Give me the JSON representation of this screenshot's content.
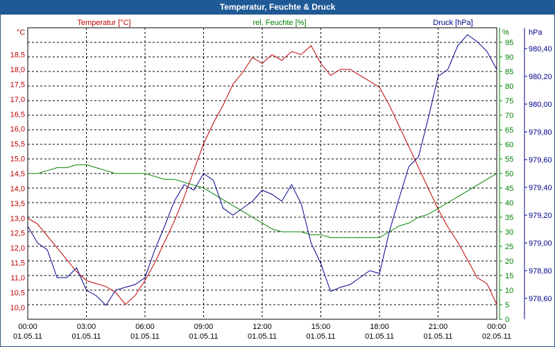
{
  "chart_data": {
    "type": "line",
    "title": "Temperatur, Feuchte & Druck",
    "grid": true,
    "x_ticks": [
      {
        "time": "00:00",
        "date": "01.05.11"
      },
      {
        "time": "03:00",
        "date": "01.05.11"
      },
      {
        "time": "06:00",
        "date": "01.05.11"
      },
      {
        "time": "09:00",
        "date": "01.05.11"
      },
      {
        "time": "12:00",
        "date": "01.05.11"
      },
      {
        "time": "15:00",
        "date": "01.05.11"
      },
      {
        "time": "18:00",
        "date": "01.05.11"
      },
      {
        "time": "21:00",
        "date": "01.05.11"
      },
      {
        "time": "00:00",
        "date": "02.05.11"
      }
    ],
    "xlim_hours": [
      0,
      24
    ],
    "axes": {
      "temperature": {
        "label": "Temperatur [°C]",
        "unit": "°C",
        "color": "#c00000",
        "ylim": [
          9.6,
          19.4
        ],
        "ticks": [
          "10,0",
          "10,5",
          "11,0",
          "11,5",
          "12,0",
          "12,5",
          "13,0",
          "13,5",
          "14,0",
          "14,5",
          "15,0",
          "15,5",
          "16,0",
          "16,5",
          "17,0",
          "17,5",
          "18,0",
          "18,5"
        ]
      },
      "humidity": {
        "label": "rel. Feuchte [%]",
        "unit": "%",
        "color": "#008000",
        "ylim": [
          0,
          100
        ],
        "ticks": [
          "0",
          "5",
          "10",
          "15",
          "20",
          "25",
          "30",
          "35",
          "40",
          "45",
          "50",
          "55",
          "60",
          "65",
          "70",
          "75",
          "80",
          "85",
          "90",
          "95"
        ]
      },
      "pressure": {
        "label": "Druck [hPa]",
        "unit": "hPa",
        "color": "#00008b",
        "ylim": [
          978.45,
          980.55
        ],
        "ticks": [
          "978,60",
          "978,80",
          "979,00",
          "979,20",
          "979,40",
          "979,60",
          "979,80",
          "980,00",
          "980,20",
          "980,40"
        ]
      }
    },
    "series": [
      {
        "name": "Temperatur [°C]",
        "axis": "temperature",
        "color": "#c00000",
        "x": [
          0,
          0.5,
          1,
          1.5,
          2,
          2.5,
          3,
          3.5,
          4,
          4.5,
          5,
          5.5,
          6,
          6.5,
          7,
          7.5,
          8,
          8.5,
          9,
          9.5,
          10,
          10.5,
          11,
          11.5,
          12,
          12.5,
          13,
          13.5,
          14,
          14.5,
          15,
          15.5,
          16,
          16.5,
          17,
          17.5,
          18,
          18.5,
          19,
          19.5,
          20,
          20.5,
          21,
          21.5,
          22,
          22.5,
          23,
          23.5,
          24
        ],
        "values": [
          13.0,
          12.8,
          12.4,
          12.0,
          11.6,
          11.2,
          10.9,
          10.8,
          10.7,
          10.5,
          10.1,
          10.4,
          10.9,
          11.5,
          12.2,
          12.9,
          13.7,
          14.6,
          15.5,
          16.2,
          16.8,
          17.5,
          17.9,
          18.4,
          18.2,
          18.5,
          18.3,
          18.6,
          18.5,
          18.8,
          18.2,
          17.8,
          18.0,
          18.0,
          17.8,
          17.6,
          17.4,
          16.8,
          16.1,
          15.4,
          14.7,
          14.0,
          13.3,
          12.7,
          12.2,
          11.6,
          11.0,
          10.8,
          10.1
        ]
      },
      {
        "name": "rel. Feuchte [%]",
        "axis": "humidity",
        "color": "#008000",
        "x": [
          0,
          0.5,
          1,
          1.5,
          2,
          2.5,
          3,
          3.5,
          4,
          4.5,
          5,
          5.5,
          6,
          6.5,
          7,
          7.5,
          8,
          8.5,
          9,
          9.5,
          10,
          10.5,
          11,
          11.5,
          12,
          12.5,
          13,
          13.5,
          14,
          14.5,
          15,
          15.5,
          16,
          16.5,
          17,
          17.5,
          18,
          18.5,
          19,
          19.5,
          20,
          20.5,
          21,
          21.5,
          22,
          22.5,
          23,
          23.5,
          24
        ],
        "values": [
          50,
          50,
          51,
          52,
          52,
          53,
          53,
          52,
          51,
          50,
          50,
          50,
          50,
          49,
          48,
          48,
          47,
          46,
          45,
          43,
          41,
          39,
          37,
          35,
          33,
          31,
          30,
          30,
          30,
          29,
          29,
          28,
          28,
          28,
          28,
          28,
          28,
          30,
          32,
          33,
          35,
          36,
          38,
          40,
          42,
          44,
          46,
          48,
          50
        ]
      },
      {
        "name": "Druck [hPa]",
        "axis": "pressure",
        "color": "#00008b",
        "x": [
          0,
          0.5,
          1,
          1.5,
          2,
          2.5,
          3,
          3.5,
          4,
          4.5,
          5,
          5.5,
          6,
          6.5,
          7,
          7.5,
          8,
          8.5,
          9,
          9.5,
          10,
          10.5,
          11,
          11.5,
          12,
          12.5,
          13,
          13.5,
          14,
          14.5,
          15,
          15.5,
          16,
          16.5,
          17,
          17.5,
          18,
          18.5,
          19,
          19.5,
          20,
          20.5,
          21,
          21.5,
          22,
          22.5,
          23,
          23.5,
          24
        ],
        "values": [
          979.12,
          979.0,
          978.95,
          978.75,
          978.75,
          978.82,
          978.66,
          978.62,
          978.55,
          978.66,
          978.68,
          978.7,
          978.75,
          978.95,
          979.12,
          979.3,
          979.42,
          979.38,
          979.5,
          979.45,
          979.25,
          979.2,
          979.25,
          979.3,
          979.38,
          979.35,
          979.3,
          979.42,
          979.28,
          979.0,
          978.85,
          978.65,
          978.68,
          978.7,
          978.75,
          978.8,
          978.78,
          979.08,
          979.32,
          979.55,
          979.62,
          979.9,
          980.2,
          980.25,
          980.42,
          980.5,
          980.45,
          980.38,
          980.25
        ]
      }
    ]
  }
}
